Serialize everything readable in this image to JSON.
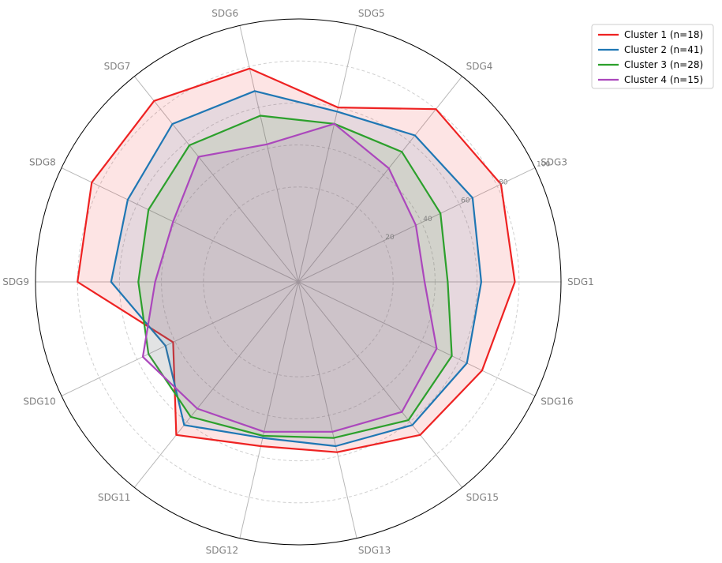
{
  "chart_data": {
    "type": "radar",
    "categories": [
      "SDG1",
      "SDG3",
      "SDG4",
      "SDG5",
      "SDG6",
      "SDG7",
      "SDG8",
      "SDG9",
      "SDG10",
      "SDG11",
      "SDG12",
      "SDG13",
      "SDG15",
      "SDG16"
    ],
    "rlim": [
      0,
      100
    ],
    "rticks": [
      20,
      40,
      60,
      80,
      100
    ],
    "grid": true,
    "legend_position": "top-right",
    "series": [
      {
        "name": "Cluster 1 (n=18)",
        "color": "#ee2222",
        "fill": true,
        "values": [
          78,
          82,
          80,
          60,
          79,
          85,
          84,
          80,
          41,
          68,
          55,
          58,
          68,
          72
        ]
      },
      {
        "name": "Cluster 2 (n=41)",
        "color": "#1f77b4",
        "values": [
          62,
          67,
          64,
          58,
          68,
          71,
          65,
          64,
          45,
          62,
          51,
          55,
          62,
          64
        ]
      },
      {
        "name": "Cluster 3 (n=28)",
        "color": "#2ca02c",
        "values": [
          46,
          50,
          54,
          52,
          56,
          58,
          54,
          51,
          54,
          57,
          50,
          51,
          59,
          56
        ]
      },
      {
        "name": "Cluster 4 (n=15)",
        "color": "#ab47bc",
        "values": [
          35,
          37,
          44,
          52,
          42,
          51,
          41,
          43,
          57,
          52,
          48,
          48,
          54,
          48
        ]
      }
    ]
  }
}
